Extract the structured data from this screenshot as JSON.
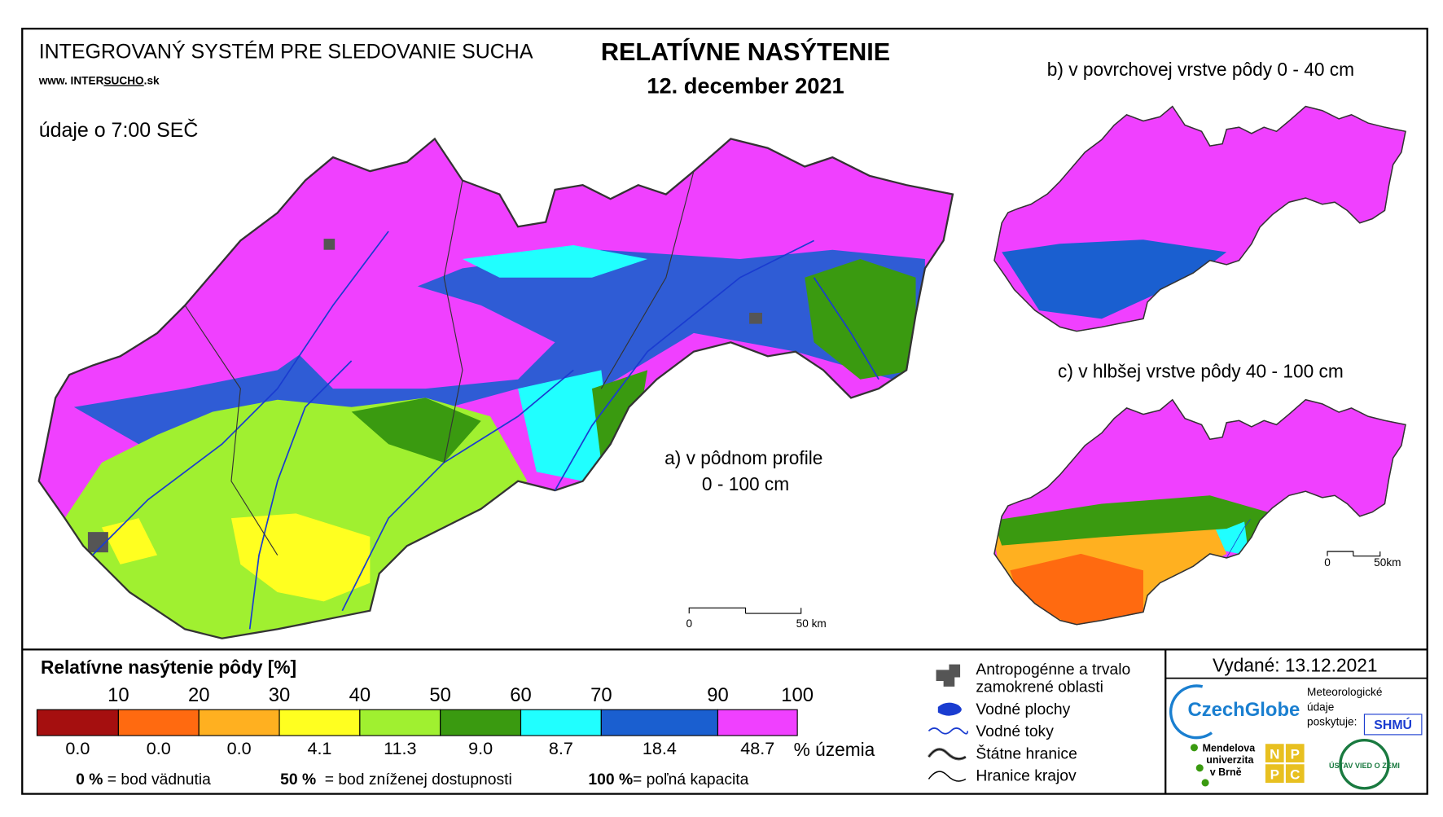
{
  "header": {
    "system": "INTEGROVANÝ SYSTÉM PRE SLEDOVANIE SUCHA",
    "url_prefix": "www. INTER",
    "url_highlight": "SUCHO",
    "url_suffix": ".sk",
    "time": "údaje o 7:00 SEČ",
    "title": "RELATÍVNE NASÝTENIE",
    "date": "12. december 2021"
  },
  "maps": {
    "a": {
      "label": "a) v pôdnom profile",
      "sublabel": "0 - 100 cm",
      "scale_start": "0",
      "scale_end": "50 km"
    },
    "b": {
      "label": "b) v povrchovej vrstve pôdy 0 - 40 cm"
    },
    "c": {
      "label": "c) v hlbšej vrstve pôdy 40 - 100 cm",
      "scale_start": "0",
      "scale_end": "50km"
    }
  },
  "legend": {
    "title": "Relatívne nasýtenie pôdy [%]",
    "thresholds": [
      10,
      20,
      30,
      40,
      50,
      60,
      70,
      90,
      100
    ],
    "classes": [
      {
        "color": "#a50f0f",
        "share": "0.0"
      },
      {
        "color": "#ff6a10",
        "share": "0.0"
      },
      {
        "color": "#ffb020",
        "share": "0.0"
      },
      {
        "color": "#ffff20",
        "share": "4.1"
      },
      {
        "color": "#a0f030",
        "share": "11.3"
      },
      {
        "color": "#3a9a10",
        "share": "9.0"
      },
      {
        "color": "#20ffff",
        "share": "8.7"
      },
      {
        "color": "#1a5fd0",
        "share": "18.4"
      },
      {
        "color": "#f040ff",
        "share": "48.7"
      }
    ],
    "unit": "% územia",
    "notes": [
      {
        "value": "0 %",
        "text": "= bod vädnutia"
      },
      {
        "value": "50 %",
        "text": "= bod zníženej dostupnosti"
      },
      {
        "value": "100 %",
        "text": "= poľná kapacita"
      }
    ]
  },
  "symbols": {
    "wet_1": "Antropogénne a trvalo",
    "wet_2": "zamokrené oblasti",
    "water": "Vodné plochy",
    "rivers": "Vodné toky",
    "state": "Štátne hranice",
    "regions": "Hranice krajov"
  },
  "issued": "Vydané: 13.12.2021",
  "logos": {
    "czechglobe": "CzechGlobe",
    "meteo_1": "Meteorologické",
    "meteo_2": "údaje",
    "meteo_3": "poskytuje:",
    "shmu": "SHMÚ",
    "mendel_1": "Mendelova",
    "mendel_2": "univerzita",
    "mendel_3": "v Brně",
    "nppc": [
      "N",
      "P",
      "P",
      "C"
    ],
    "uvz": "ÚSTAV VIED O ZEMI"
  }
}
